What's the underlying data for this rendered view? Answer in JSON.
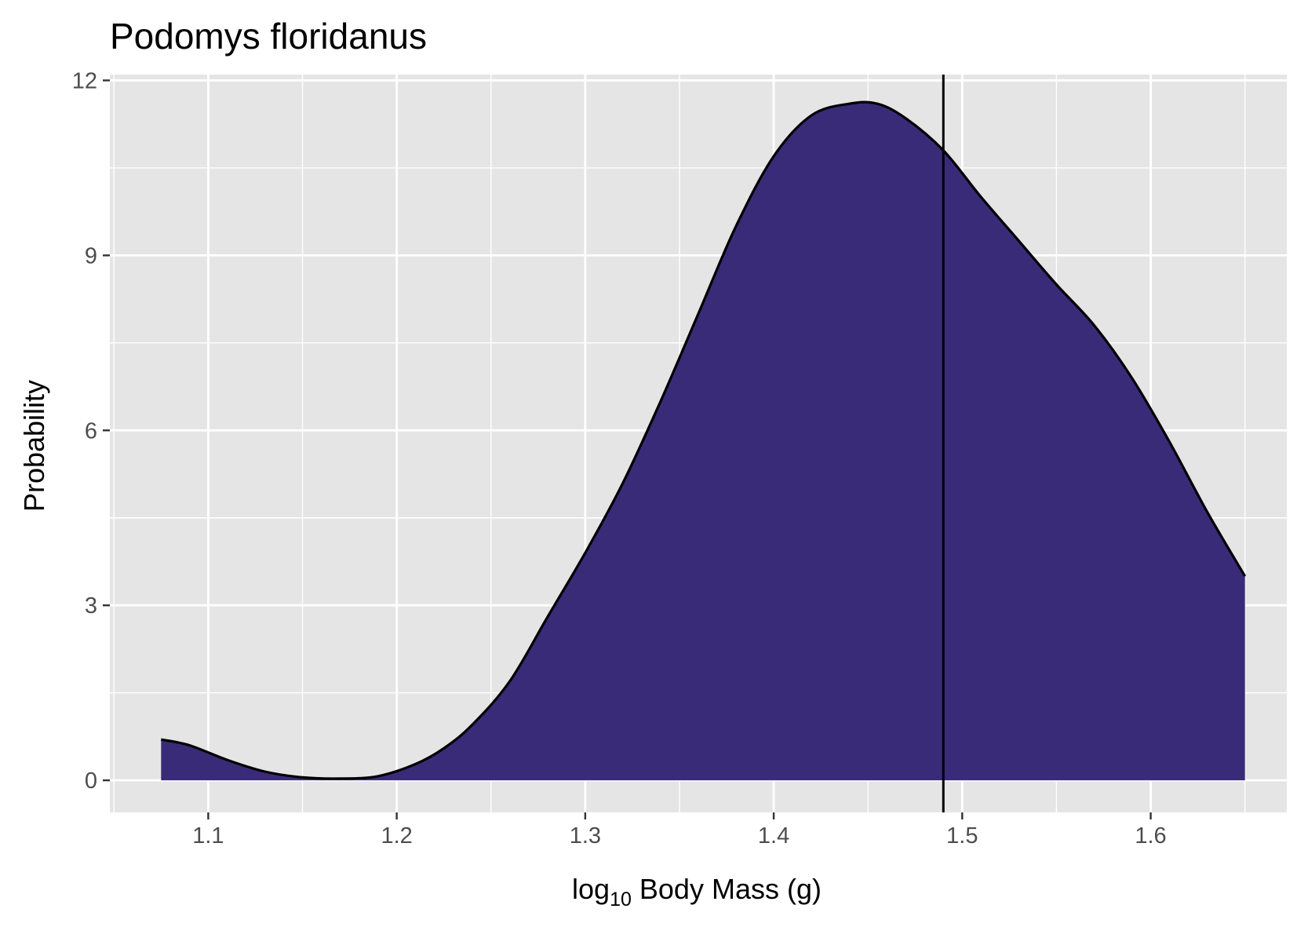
{
  "chart_data": {
    "type": "area",
    "title": "Podomys floridanus",
    "xlabel": {
      "prefix": "log",
      "subscript": "10",
      "suffix": " Body Mass (g)"
    },
    "ylabel": "Probability",
    "xlim": [
      1.0478,
      1.6722
    ],
    "ylim": [
      -0.55,
      12.1
    ],
    "x_ticks": [
      1.1,
      1.2,
      1.3,
      1.4,
      1.5,
      1.6
    ],
    "x_tick_labels": [
      "1.1",
      "1.2",
      "1.3",
      "1.4",
      "1.5",
      "1.6"
    ],
    "x_minor_ticks": [
      1.05,
      1.15,
      1.25,
      1.35,
      1.45,
      1.55,
      1.65
    ],
    "y_ticks": [
      0,
      3,
      6,
      9,
      12
    ],
    "y_tick_labels": [
      "0",
      "3",
      "6",
      "9",
      "12"
    ],
    "y_minor_ticks": [
      1.5,
      4.5,
      7.5,
      10.5
    ],
    "grid": true,
    "fill_color": "#3a2b78",
    "panel_color": "#e5e5e5",
    "series": [
      {
        "x": [
          1.075,
          1.09,
          1.11,
          1.13,
          1.15,
          1.17,
          1.19,
          1.21,
          1.225,
          1.24,
          1.26,
          1.28,
          1.3,
          1.32,
          1.34,
          1.36,
          1.38,
          1.4,
          1.42,
          1.44,
          1.455,
          1.47,
          1.49,
          1.51,
          1.53,
          1.55,
          1.57,
          1.59,
          1.61,
          1.63,
          1.65
        ],
        "y": [
          0.7,
          0.6,
          0.35,
          0.15,
          0.05,
          0.03,
          0.07,
          0.28,
          0.55,
          0.95,
          1.7,
          2.8,
          3.9,
          5.1,
          6.5,
          8.0,
          9.5,
          10.7,
          11.4,
          11.6,
          11.6,
          11.35,
          10.8,
          10.0,
          9.25,
          8.5,
          7.8,
          6.9,
          5.8,
          4.6,
          3.5
        ]
      }
    ],
    "vline": 1.49
  }
}
